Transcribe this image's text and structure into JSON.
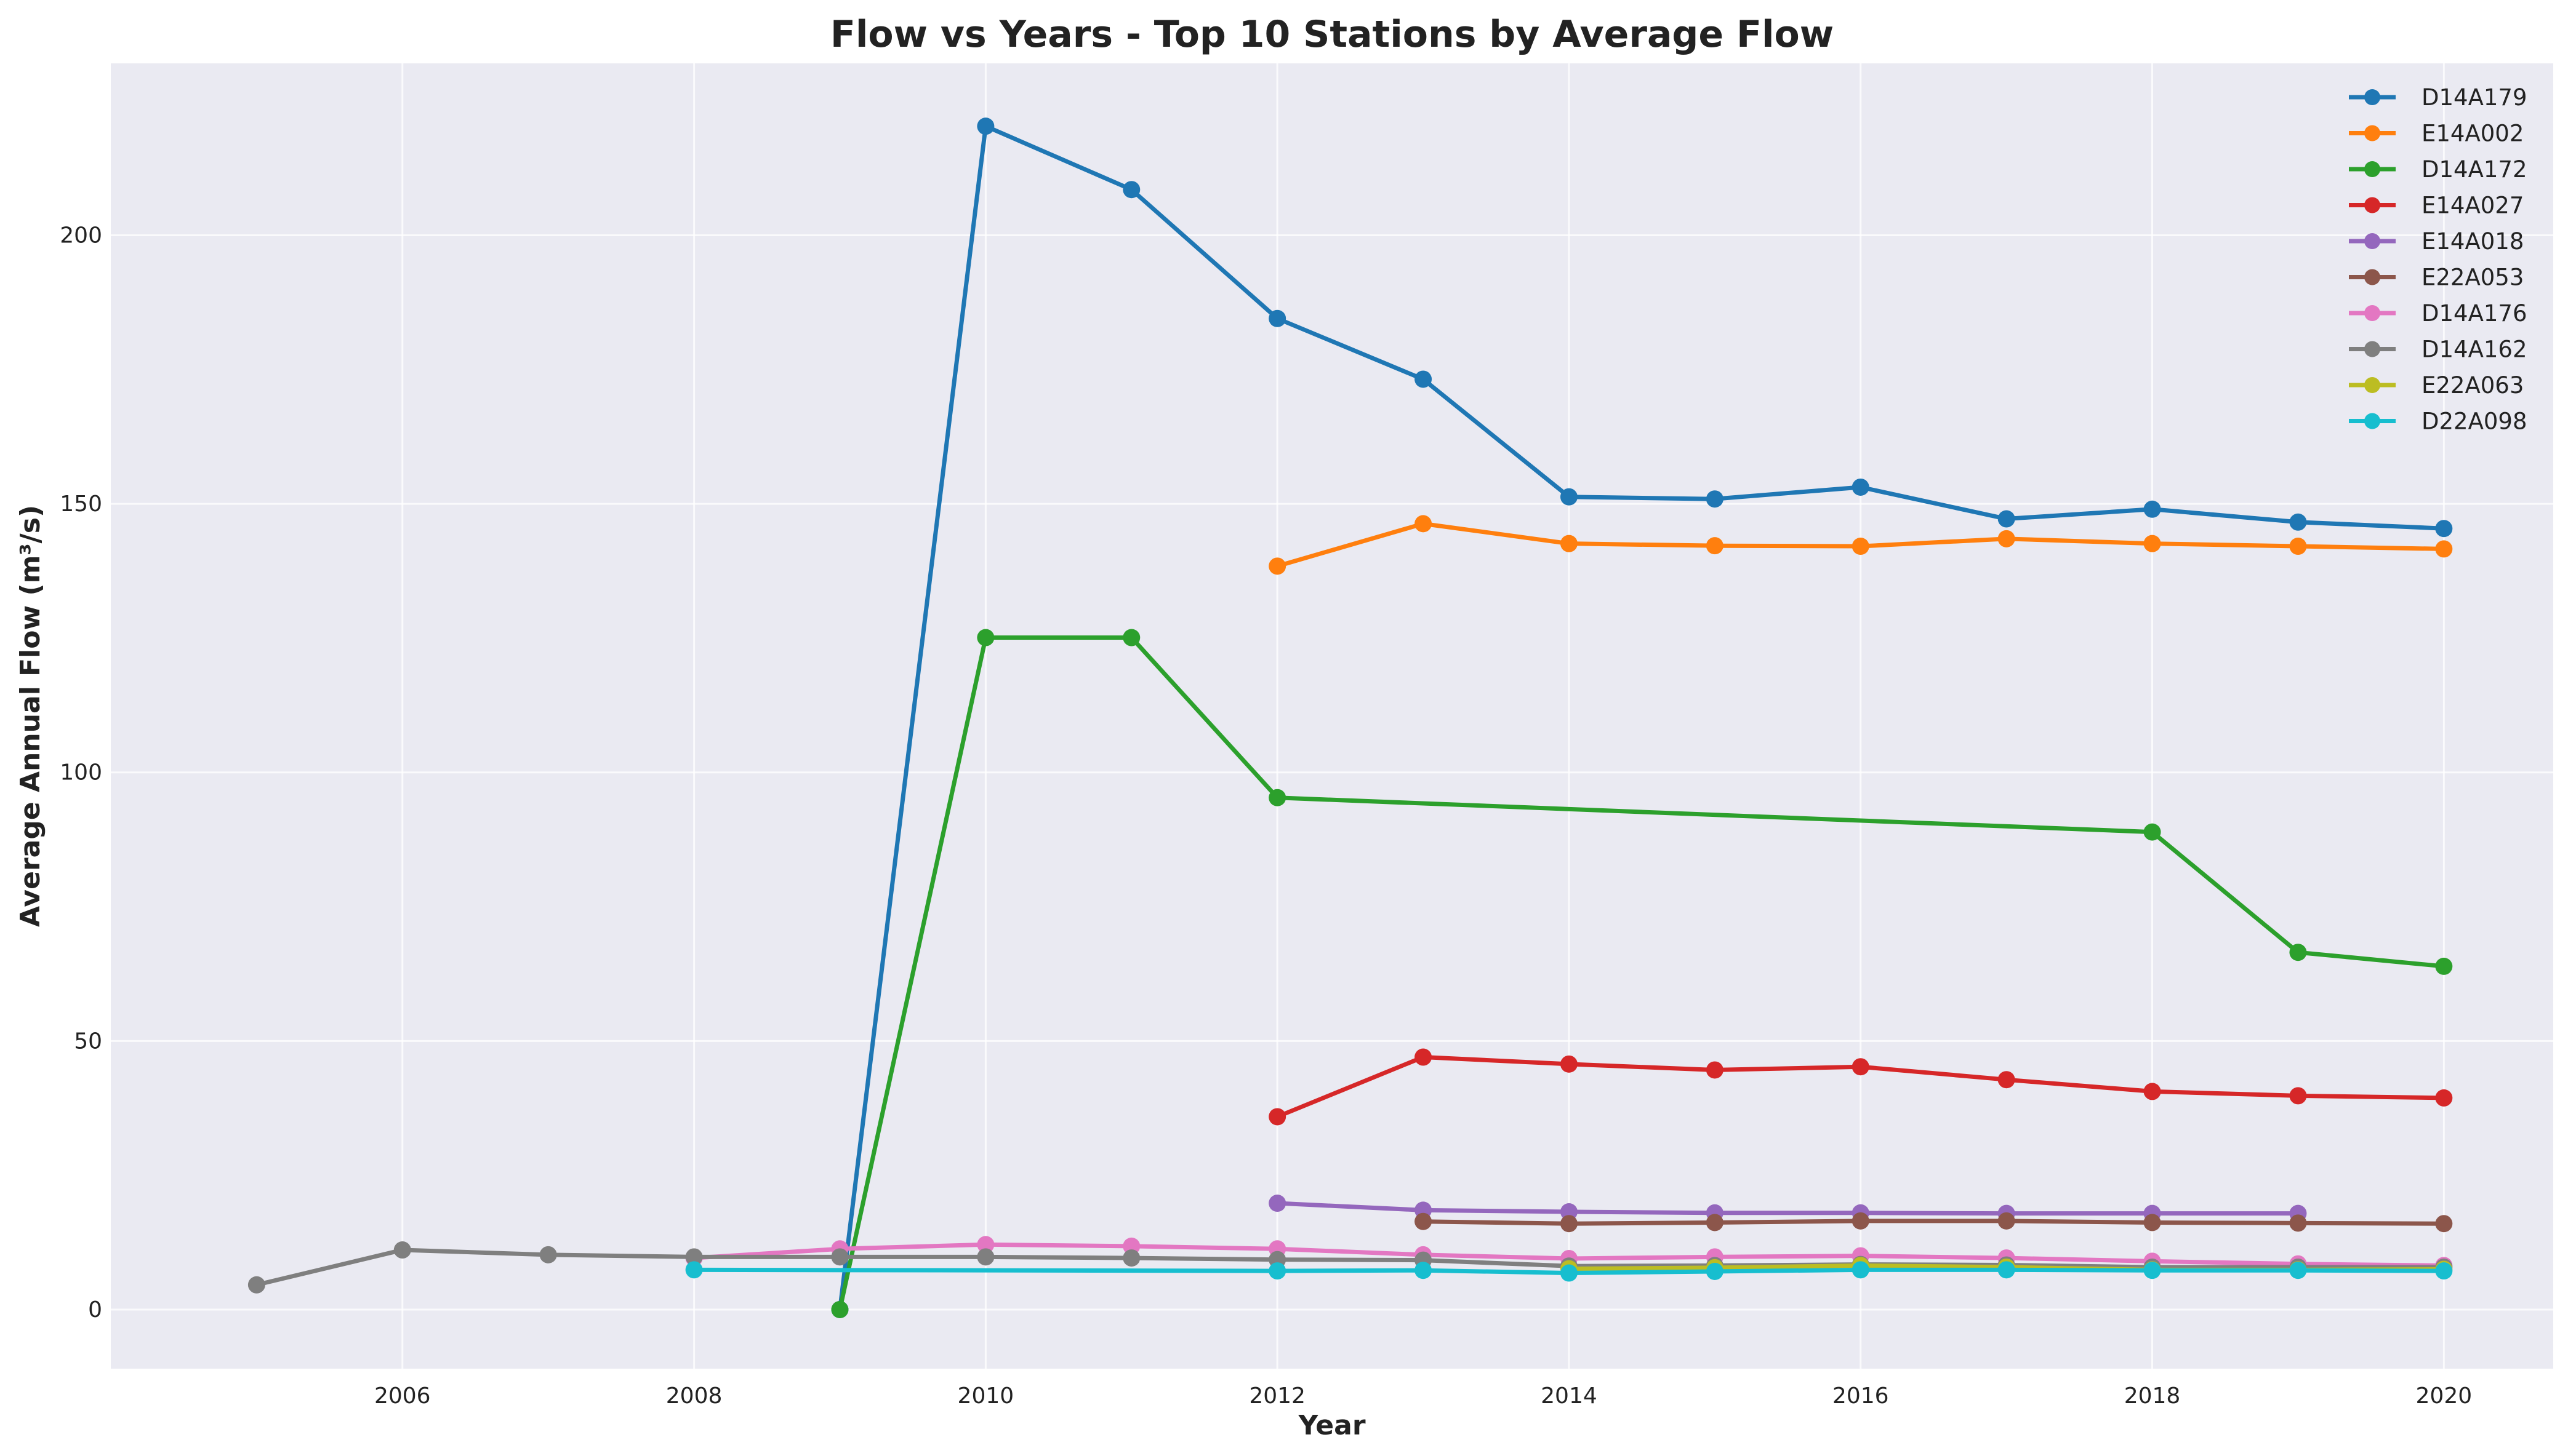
{
  "chart_data": {
    "type": "line",
    "title": "Flow vs Years - Top 10 Stations by Average Flow",
    "xlabel": "Year",
    "ylabel": "Average Annual Flow (m³/s)",
    "xlim": [
      2004.0,
      2020.75
    ],
    "ylim": [
      -11,
      232
    ],
    "xticks": [
      2006,
      2008,
      2010,
      2012,
      2014,
      2016,
      2018,
      2020
    ],
    "yticks": [
      0,
      50,
      100,
      150,
      200
    ],
    "grid": true,
    "legend_position": "top-right",
    "series": [
      {
        "name": "D14A179",
        "color": "#1f77b4",
        "x": [
          2009,
          2010,
          2011,
          2012,
          2013,
          2014,
          2015,
          2016,
          2017,
          2018,
          2019,
          2020
        ],
        "y": [
          0,
          220.3,
          208.5,
          184.5,
          173.2,
          151.3,
          150.9,
          153.1,
          147.2,
          149.0,
          146.6,
          145.4
        ]
      },
      {
        "name": "E14A002",
        "color": "#ff7f0e",
        "x": [
          2012,
          2013,
          2014,
          2015,
          2016,
          2017,
          2018,
          2019,
          2020
        ],
        "y": [
          138.4,
          146.3,
          142.6,
          142.2,
          142.1,
          143.5,
          142.6,
          142.1,
          141.6
        ]
      },
      {
        "name": "D14A172",
        "color": "#2ca02c",
        "x": [
          2009,
          2010,
          2011,
          2012,
          2018,
          2019,
          2020
        ],
        "y": [
          0,
          125.1,
          125.1,
          95.3,
          88.9,
          66.5,
          63.9
        ]
      },
      {
        "name": "E14A027",
        "color": "#d62728",
        "x": [
          2012,
          2013,
          2014,
          2015,
          2016,
          2017,
          2018,
          2019,
          2020
        ],
        "y": [
          35.9,
          47.0,
          45.7,
          44.6,
          45.2,
          42.8,
          40.6,
          39.8,
          39.4
        ]
      },
      {
        "name": "E14A018",
        "color": "#9467bd",
        "x": [
          2012,
          2013,
          2014,
          2015,
          2016,
          2017,
          2018,
          2019
        ],
        "y": [
          19.8,
          18.5,
          18.2,
          18.0,
          18.0,
          17.9,
          17.9,
          17.9
        ]
      },
      {
        "name": "E22A053",
        "color": "#8c564b",
        "x": [
          2013,
          2014,
          2015,
          2016,
          2017,
          2018,
          2019,
          2020
        ],
        "y": [
          16.4,
          16.0,
          16.2,
          16.5,
          16.5,
          16.2,
          16.1,
          16.0
        ]
      },
      {
        "name": "D14A176",
        "color": "#e377c2",
        "x": [
          2008,
          2009,
          2010,
          2011,
          2012,
          2013,
          2014,
          2015,
          2016,
          2017,
          2018,
          2019,
          2020
        ],
        "y": [
          9.6,
          11.3,
          12.1,
          11.8,
          11.3,
          10.2,
          9.5,
          9.8,
          10.0,
          9.6,
          9.0,
          8.5,
          8.2
        ]
      },
      {
        "name": "D14A162",
        "color": "#7f7f7f",
        "x": [
          2005,
          2006,
          2007,
          2008,
          2009,
          2010,
          2011,
          2012,
          2013,
          2014,
          2015,
          2016,
          2017,
          2018,
          2019,
          2020
        ],
        "y": [
          4.6,
          11.1,
          10.2,
          9.8,
          9.8,
          9.8,
          9.6,
          9.3,
          9.2,
          8.1,
          8.2,
          8.4,
          8.3,
          7.9,
          7.9,
          7.9
        ]
      },
      {
        "name": "E22A063",
        "color": "#bcbd22",
        "x": [
          2014,
          2015,
          2016,
          2017,
          2018,
          2019,
          2020
        ],
        "y": [
          7.6,
          7.8,
          8.2,
          7.9,
          7.4,
          7.4,
          7.5
        ]
      },
      {
        "name": "D22A098",
        "color": "#17becf",
        "x": [
          2008,
          2012,
          2013,
          2014,
          2015,
          2016,
          2017,
          2018,
          2019,
          2020
        ],
        "y": [
          7.4,
          7.2,
          7.3,
          6.8,
          7.1,
          7.4,
          7.4,
          7.3,
          7.3,
          7.2
        ]
      }
    ]
  }
}
